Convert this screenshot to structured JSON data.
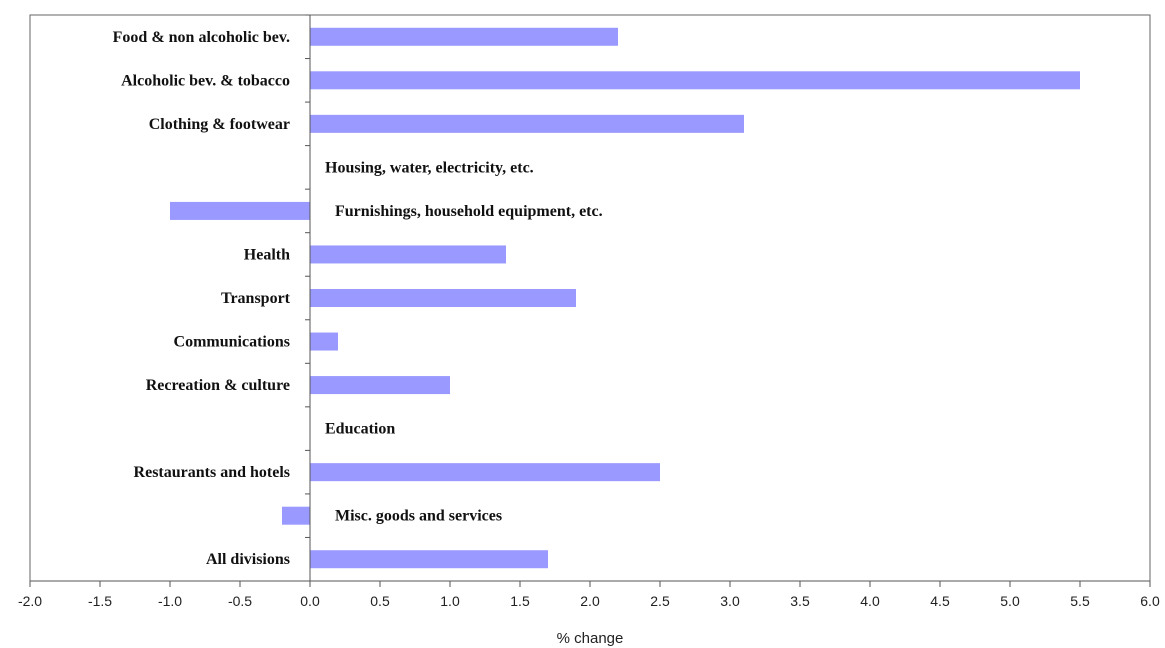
{
  "chart_data": {
    "type": "bar",
    "orientation": "horizontal",
    "categories": [
      "Food & non alcoholic bev.",
      "Alcoholic bev. & tobacco",
      "Clothing & footwear",
      "Housing, water, electricity, etc.",
      "Furnishings, household equipment, etc.",
      "Health",
      "Transport",
      "Communications",
      "Recreation  & culture",
      "Education",
      "Restaurants and hotels",
      "Misc. goods and services",
      "All divisions"
    ],
    "values": [
      2.2,
      5.5,
      3.1,
      0.0,
      -1.0,
      1.4,
      1.9,
      0.2,
      1.0,
      0.0,
      2.5,
      -0.2,
      1.7
    ],
    "xlabel": "% change",
    "ylabel": "",
    "title": "",
    "xlim": [
      -2.0,
      6.0
    ],
    "xticks": [
      "-2.0",
      "-1.5",
      "-1.0",
      "-0.5",
      "0.0",
      "0.5",
      "1.0",
      "1.5",
      "2.0",
      "2.5",
      "3.0",
      "3.5",
      "4.0",
      "4.5",
      "5.0",
      "5.5",
      "6.0"
    ],
    "bar_color": "#9999ff",
    "grid": false,
    "legend": "none"
  }
}
